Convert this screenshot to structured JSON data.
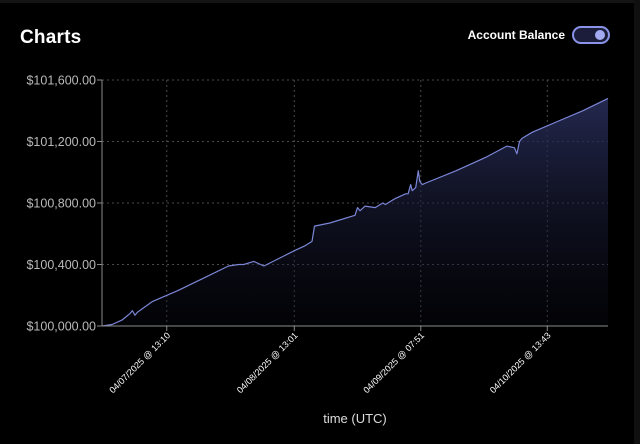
{
  "header": {
    "title": "Charts",
    "toggle_label": "Account Balance",
    "toggle_on": true
  },
  "colors": {
    "line": "#7b86d6",
    "fill_top": "#2a2f5c",
    "grid": "#4a4a4a",
    "axis": "#8a8a8a",
    "accent": "#8b93e8"
  },
  "chart_data": {
    "type": "area",
    "title": "",
    "xlabel": "time (UTC)",
    "ylabel": "",
    "ylim": [
      100000,
      101600
    ],
    "y_ticks": [
      100000,
      100400,
      100800,
      101200,
      101600
    ],
    "y_tick_labels": [
      "$100,000.00",
      "$100,400.00",
      "$100,800.00",
      "$101,200.00",
      "$101,600.00"
    ],
    "x_ticks": [
      {
        "label": "04/07/2025 @ 13:10",
        "pos": 0.128
      },
      {
        "label": "04/08/2025 @ 13:01",
        "pos": 0.38
      },
      {
        "label": "04/09/2025 @ 07:51",
        "pos": 0.63
      },
      {
        "label": "04/10/2025 @ 13:43",
        "pos": 0.88
      }
    ],
    "grid": true,
    "legend": "none",
    "series": [
      {
        "x": [
          0,
          0.02,
          0.04,
          0.055,
          0.06,
          0.065,
          0.07,
          0.1,
          0.15,
          0.2,
          0.25,
          0.27,
          0.28,
          0.3,
          0.32,
          0.35,
          0.38,
          0.4,
          0.415,
          0.42,
          0.45,
          0.5,
          0.505,
          0.51,
          0.52,
          0.54,
          0.555,
          0.56,
          0.575,
          0.58,
          0.6,
          0.605,
          0.61,
          0.613,
          0.62,
          0.625,
          0.628,
          0.633,
          0.64,
          0.7,
          0.76,
          0.8,
          0.815,
          0.82,
          0.825,
          0.83,
          0.85,
          0.9,
          0.95,
          1.0
        ],
        "y": [
          100000,
          100010,
          100040,
          100080,
          100100,
          100070,
          100090,
          100160,
          100230,
          100310,
          100390,
          100400,
          100400,
          100420,
          100390,
          100440,
          100490,
          100520,
          100550,
          100650,
          100670,
          100720,
          100770,
          100750,
          100780,
          100770,
          100800,
          100790,
          100820,
          100830,
          100860,
          100860,
          100920,
          100880,
          100900,
          101010,
          100940,
          100920,
          100930,
          101010,
          101100,
          101170,
          101160,
          101120,
          101200,
          101220,
          101260,
          101330,
          101400,
          101480
        ]
      }
    ]
  }
}
